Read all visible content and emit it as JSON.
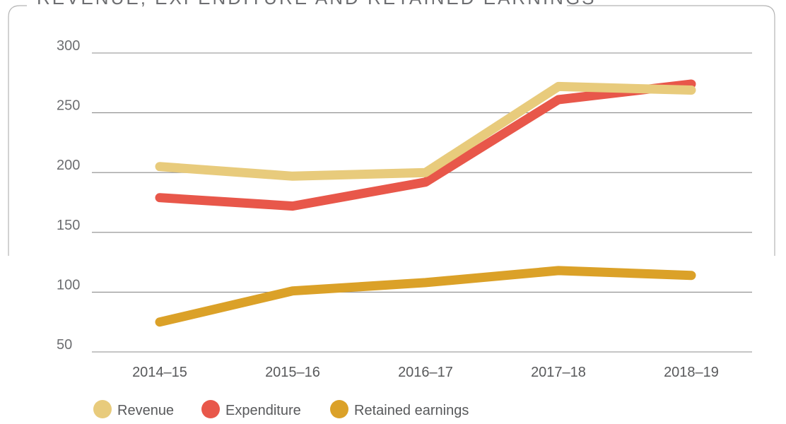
{
  "chart_data": {
    "type": "line",
    "title": "REVENUE, EXPENDITURE AND RETAINED EARNINGS",
    "categories": [
      "2014–15",
      "2015–16",
      "2016–17",
      "2017–18",
      "2018–19"
    ],
    "y_ticks": [
      "300",
      "250",
      "200",
      "150",
      "100",
      "50"
    ],
    "ylim": [
      50,
      300
    ],
    "grid": true,
    "legend_position": "bottom-left",
    "series": [
      {
        "name": "Revenue",
        "color": "#e8cb7c",
        "values": [
          205,
          197,
          200,
          272,
          269
        ]
      },
      {
        "name": "Expenditure",
        "color": "#e8574a",
        "values": [
          179,
          172,
          192,
          261,
          274
        ]
      },
      {
        "name": "Retained earnings",
        "color": "#dba128",
        "values": [
          75,
          101,
          108,
          118,
          114
        ]
      }
    ],
    "draw_order": [
      1,
      0,
      2
    ]
  }
}
